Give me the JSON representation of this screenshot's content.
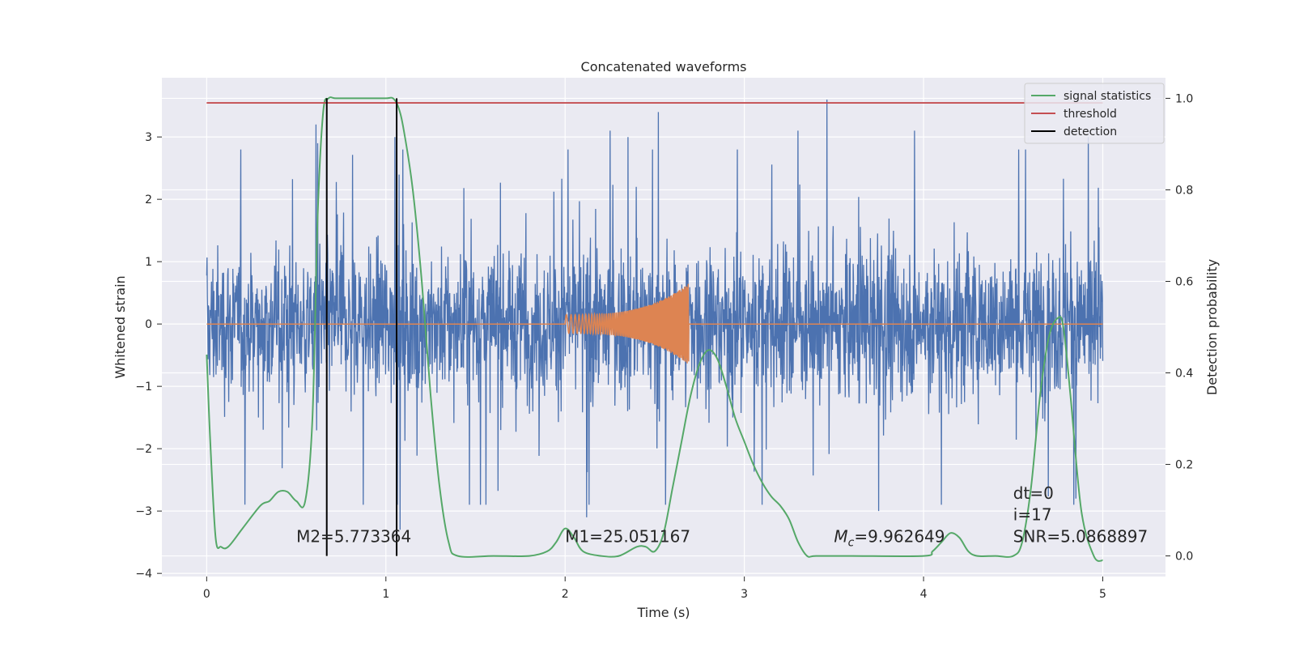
{
  "colors": {
    "background": "#eaeaf2",
    "grid": "#ffffff",
    "noise": "#4c72b0",
    "template": "#dd8452",
    "statistic": "#55a868",
    "threshold": "#c44e52",
    "detection": "#000000"
  },
  "chart_data": {
    "type": "line",
    "title": "Concatenated waveforms",
    "xlabel": "Time (s)",
    "ylabel": "Whitened strain",
    "y2label": "Detection probability",
    "xlim": [
      -0.25,
      5.35
    ],
    "ylim": [
      -4.05,
      3.95
    ],
    "y2lim": [
      -0.045,
      1.045
    ],
    "grid": true,
    "legend_position": "top-right",
    "x_ticks": [
      0,
      1,
      2,
      3,
      4,
      5
    ],
    "x_tick_labels": [
      "0",
      "1",
      "2",
      "3",
      "4",
      "5"
    ],
    "y_ticks": [
      -4,
      -3,
      -2,
      -1,
      0,
      1,
      2,
      3
    ],
    "y_tick_labels": [
      "−4",
      "−3",
      "−2",
      "−1",
      "0",
      "1",
      "2",
      "3"
    ],
    "y2_ticks": [
      0.0,
      0.2,
      0.4,
      0.6,
      0.8,
      1.0
    ],
    "y2_tick_labels": [
      "0.0",
      "0.2",
      "0.4",
      "0.6",
      "0.8",
      "1.0"
    ],
    "noise": {
      "axis": "left",
      "x_range": [
        0,
        5
      ],
      "peak_times": [
        0.61,
        0.62,
        1.05,
        1.08,
        2.12,
        2.25,
        2.35,
        2.52,
        2.56,
        3.3,
        3.46,
        3.75,
        3.95,
        4.1,
        4.85,
        4.92
      ],
      "peak_values": [
        3.2,
        2.9,
        3.0,
        -3.3,
        -3.1,
        3.1,
        3.0,
        3.4,
        -2.9,
        3.1,
        3.6,
        -3.0,
        3.1,
        -2.9,
        -2.8,
        3.0
      ]
    },
    "template": {
      "axis": "left",
      "x": [
        2.0,
        2.69
      ],
      "amplitude_start": 0.15,
      "amplitude_peak": 0.65,
      "flat_value": 0.0,
      "x_range": [
        0,
        5
      ]
    },
    "series": [
      {
        "name": "signal statistics",
        "axis": "right",
        "x": [
          0.0,
          0.02,
          0.05,
          0.08,
          0.12,
          0.2,
          0.3,
          0.35,
          0.4,
          0.45,
          0.5,
          0.55,
          0.59,
          0.62,
          0.65,
          0.68,
          0.72,
          0.8,
          0.9,
          1.0,
          1.04,
          1.07,
          1.1,
          1.15,
          1.2,
          1.25,
          1.3,
          1.35,
          1.4,
          1.6,
          1.8,
          1.9,
          1.95,
          2.0,
          2.05,
          2.1,
          2.2,
          2.3,
          2.4,
          2.45,
          2.5,
          2.55,
          2.6,
          2.65,
          2.7,
          2.75,
          2.8,
          2.85,
          2.9,
          2.95,
          3.0,
          3.05,
          3.1,
          3.15,
          3.2,
          3.25,
          3.3,
          3.35,
          3.4,
          3.6,
          4.0,
          4.05,
          4.1,
          4.15,
          4.2,
          4.25,
          4.3,
          4.4,
          4.5,
          4.55,
          4.6,
          4.65,
          4.7,
          4.75,
          4.78,
          4.82,
          4.88,
          4.95,
          5.0
        ],
        "values": [
          0.44,
          0.25,
          0.04,
          0.02,
          0.02,
          0.06,
          0.11,
          0.12,
          0.14,
          0.14,
          0.12,
          0.12,
          0.3,
          0.75,
          0.97,
          1.0,
          1.0,
          1.0,
          1.0,
          1.0,
          1.0,
          0.98,
          0.93,
          0.8,
          0.6,
          0.35,
          0.15,
          0.03,
          0.0,
          0.0,
          0.0,
          0.01,
          0.03,
          0.06,
          0.04,
          0.01,
          0.0,
          0.0,
          0.02,
          0.02,
          0.01,
          0.05,
          0.15,
          0.25,
          0.35,
          0.42,
          0.45,
          0.43,
          0.37,
          0.3,
          0.25,
          0.2,
          0.16,
          0.13,
          0.11,
          0.08,
          0.03,
          0.0,
          0.0,
          0.0,
          0.0,
          0.01,
          0.03,
          0.05,
          0.04,
          0.01,
          0.0,
          0.0,
          0.0,
          0.03,
          0.15,
          0.35,
          0.48,
          0.52,
          0.5,
          0.35,
          0.1,
          0.0,
          -0.01
        ]
      },
      {
        "name": "threshold",
        "axis": "right",
        "x": [
          0,
          5
        ],
        "values": [
          0.99,
          0.99
        ]
      },
      {
        "name": "detection",
        "axis": "right",
        "x_positions": [
          0.67,
          1.06
        ],
        "y_range": [
          0.0,
          1.0
        ]
      }
    ],
    "annotations": [
      {
        "text": "M2=5.773364",
        "x": 0.5,
        "y": -3.5
      },
      {
        "text": "M1=25.051167",
        "x": 2.0,
        "y": -3.5
      },
      {
        "text_prefix": "M",
        "text_sub": "c",
        "text": "=9.962649",
        "x": 3.5,
        "y": -3.5
      },
      {
        "text": "dt=0",
        "x": 4.5,
        "y": -2.8
      },
      {
        "text": "i=17",
        "x": 4.5,
        "y": -3.15
      },
      {
        "text": "SNR=5.0868897",
        "x": 4.5,
        "y": -3.5
      }
    ]
  }
}
